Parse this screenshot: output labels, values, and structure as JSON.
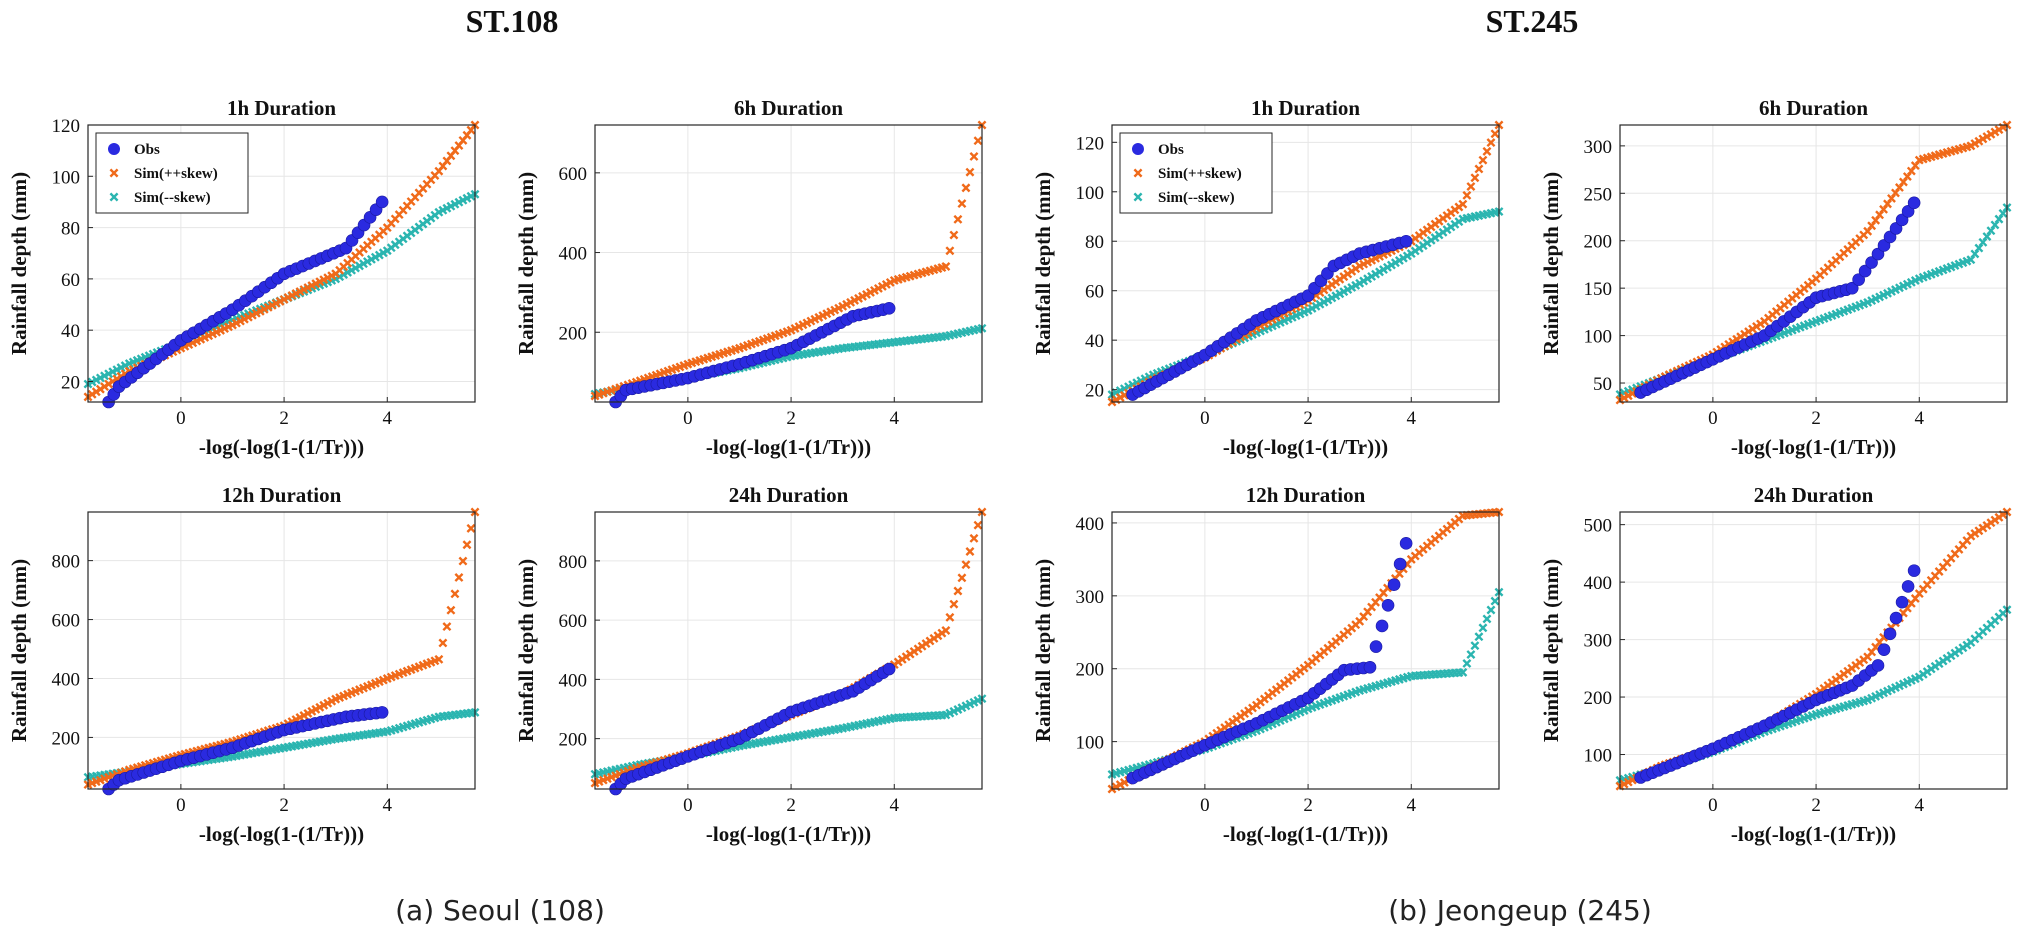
{
  "stations": [
    {
      "title": "ST.108",
      "caption": "(a) Seoul (108)"
    },
    {
      "title": "ST.245",
      "caption": "(b) Jeongeup (245)"
    }
  ],
  "legend": {
    "obs": "Obs",
    "sim_pos": "Sim(++skew)",
    "sim_neg": "Sim(--skew)"
  },
  "colors": {
    "obs": "#2a2ae0",
    "sim_pos": "#f06a1a",
    "sim_neg": "#2bb5b0",
    "axis": "#262626",
    "grid": "#e6e6e6"
  },
  "chart_data": [
    {
      "type": "scatter",
      "station": "ST.108",
      "title": "1h  Duration",
      "xlabel": "-log(-log(1-(1/Tr)))",
      "ylabel": "Rainfall depth (mm)",
      "xlim": [
        -1.8,
        5.7
      ],
      "ylim": [
        12,
        120
      ],
      "xticks": [
        0,
        2,
        4
      ],
      "yticks": [
        20,
        40,
        60,
        80,
        100,
        120
      ],
      "show_legend": true,
      "obs": {
        "x": [
          -1.4,
          -1.2,
          0,
          1,
          2,
          3.2,
          3.9
        ],
        "y": [
          12,
          18,
          36,
          48,
          62,
          72,
          90
        ]
      },
      "sim_pos": {
        "x": [
          -1.8,
          -1,
          0,
          1,
          2,
          3,
          4,
          5,
          5.7
        ],
        "y": [
          14,
          24,
          33,
          42,
          52,
          62,
          80,
          102,
          120
        ]
      },
      "sim_neg": {
        "x": [
          -1.8,
          -1,
          0,
          1,
          2,
          3,
          4,
          5,
          5.7
        ],
        "y": [
          19,
          27,
          35,
          44,
          52,
          60,
          71,
          86,
          93
        ]
      }
    },
    {
      "type": "scatter",
      "station": "ST.108",
      "title": "6h  Duration",
      "xlabel": "-log(-log(1-(1/Tr)))",
      "ylabel": "Rainfall depth (mm)",
      "xlim": [
        -1.8,
        5.7
      ],
      "ylim": [
        25,
        720
      ],
      "xticks": [
        0,
        2,
        4
      ],
      "yticks": [
        200,
        400,
        600
      ],
      "show_legend": false,
      "obs": {
        "x": [
          -1.4,
          -1.2,
          0,
          1,
          2,
          3.2,
          3.9
        ],
        "y": [
          25,
          55,
          85,
          120,
          160,
          240,
          260
        ]
      },
      "sim_pos": {
        "x": [
          -1.8,
          -1,
          0,
          1,
          2,
          3,
          4,
          5,
          5.7
        ],
        "y": [
          40,
          75,
          120,
          160,
          205,
          265,
          330,
          365,
          720
        ]
      },
      "sim_neg": {
        "x": [
          -1.8,
          -1,
          0,
          1,
          2,
          3,
          4,
          5,
          5.7
        ],
        "y": [
          45,
          65,
          85,
          110,
          140,
          160,
          175,
          190,
          210
        ]
      }
    },
    {
      "type": "scatter",
      "station": "ST.245",
      "title": "1h  Duration",
      "xlabel": "-log(-log(1-(1/Tr)))",
      "ylabel": "Rainfall depth (mm)",
      "xlim": [
        -1.8,
        5.7
      ],
      "ylim": [
        15,
        127
      ],
      "xticks": [
        0,
        2,
        4
      ],
      "yticks": [
        20,
        40,
        60,
        80,
        100,
        120
      ],
      "show_legend": true,
      "obs": {
        "x": [
          -1.4,
          0,
          1,
          2,
          2.5,
          3,
          3.9
        ],
        "y": [
          18,
          34,
          48,
          58,
          70,
          75,
          80
        ]
      },
      "sim_pos": {
        "x": [
          -1.8,
          -1,
          0,
          1,
          2,
          3,
          4,
          5,
          5.7
        ],
        "y": [
          15,
          24,
          33,
          45,
          56,
          70,
          80,
          95,
          127
        ]
      },
      "sim_neg": {
        "x": [
          -1.8,
          -1,
          0,
          1,
          2,
          3,
          4,
          5,
          5.7
        ],
        "y": [
          18,
          26,
          34,
          43,
          52,
          63,
          75,
          89,
          92
        ]
      }
    },
    {
      "type": "scatter",
      "station": "ST.245",
      "title": "6h  Duration",
      "xlabel": "-log(-log(1-(1/Tr)))",
      "ylabel": "Rainfall depth (mm)",
      "xlim": [
        -1.8,
        5.7
      ],
      "ylim": [
        30,
        322
      ],
      "xticks": [
        0,
        2,
        4
      ],
      "yticks": [
        50,
        100,
        150,
        200,
        250,
        300
      ],
      "show_legend": false,
      "obs": {
        "x": [
          -1.4,
          0,
          1,
          1.5,
          2,
          2.7,
          3.2,
          3.9
        ],
        "y": [
          40,
          75,
          100,
          120,
          140,
          150,
          186,
          240
        ]
      },
      "sim_pos": {
        "x": [
          -1.8,
          -1,
          0,
          1,
          2,
          3,
          4,
          5,
          5.7
        ],
        "y": [
          32,
          55,
          80,
          115,
          160,
          210,
          285,
          300,
          322
        ]
      },
      "sim_neg": {
        "x": [
          -1.8,
          -1,
          0,
          1,
          2,
          3,
          4,
          5,
          5.7
        ],
        "y": [
          38,
          55,
          75,
          95,
          115,
          135,
          160,
          180,
          235
        ]
      }
    },
    {
      "type": "scatter",
      "station": "ST.108",
      "title": "12h Duration",
      "xlabel": "-log(-log(1-(1/Tr)))",
      "ylabel": "Rainfall depth (mm)",
      "xlim": [
        -1.8,
        5.7
      ],
      "ylim": [
        25,
        965
      ],
      "xticks": [
        0,
        2,
        4
      ],
      "yticks": [
        200,
        400,
        600,
        800
      ],
      "show_legend": false,
      "obs": {
        "x": [
          -1.4,
          -1.2,
          0,
          1,
          2,
          3.2,
          3.9
        ],
        "y": [
          25,
          55,
          120,
          165,
          225,
          270,
          285
        ]
      },
      "sim_pos": {
        "x": [
          -1.8,
          -1,
          0,
          1,
          2,
          3,
          4,
          5,
          5.7
        ],
        "y": [
          40,
          90,
          140,
          185,
          240,
          330,
          400,
          465,
          965
        ]
      },
      "sim_neg": {
        "x": [
          -1.8,
          -1,
          0,
          1,
          2,
          3,
          4,
          5,
          5.7
        ],
        "y": [
          65,
          85,
          110,
          135,
          165,
          195,
          220,
          270,
          285
        ]
      }
    },
    {
      "type": "scatter",
      "station": "ST.108",
      "title": "24h Duration",
      "xlabel": "-log(-log(1-(1/Tr)))",
      "ylabel": "Rainfall depth (mm)",
      "xlim": [
        -1.8,
        5.7
      ],
      "ylim": [
        30,
        965
      ],
      "xticks": [
        0,
        2,
        4
      ],
      "yticks": [
        200,
        400,
        600,
        800
      ],
      "show_legend": false,
      "obs": {
        "x": [
          -1.4,
          -1.2,
          0,
          1,
          2,
          3.2,
          3.9
        ],
        "y": [
          30,
          65,
          140,
          200,
          290,
          360,
          435
        ]
      },
      "sim_pos": {
        "x": [
          -1.8,
          -1,
          0,
          1,
          2,
          3,
          4,
          5,
          5.7
        ],
        "y": [
          50,
          100,
          150,
          210,
          280,
          350,
          450,
          565,
          965
        ]
      },
      "sim_neg": {
        "x": [
          -1.8,
          -1,
          0,
          1,
          2,
          3,
          4,
          5,
          5.7
        ],
        "y": [
          80,
          110,
          140,
          175,
          205,
          235,
          270,
          280,
          335
        ]
      }
    },
    {
      "type": "scatter",
      "station": "ST.245",
      "title": "12h Duration",
      "xlabel": "-log(-log(1-(1/Tr)))",
      "ylabel": "Rainfall depth (mm)",
      "xlim": [
        -1.8,
        5.7
      ],
      "ylim": [
        35,
        415
      ],
      "xticks": [
        0,
        2,
        4
      ],
      "yticks": [
        100,
        200,
        300,
        400
      ],
      "show_legend": false,
      "obs": {
        "x": [
          -1.4,
          0,
          1,
          2,
          2.7,
          3.2,
          3.9
        ],
        "y": [
          50,
          95,
          125,
          160,
          198,
          202,
          372
        ]
      },
      "sim_pos": {
        "x": [
          -1.8,
          -1,
          0,
          1,
          2,
          3,
          4,
          5,
          5.7
        ],
        "y": [
          35,
          65,
          100,
          150,
          205,
          265,
          350,
          410,
          415
        ]
      },
      "sim_neg": {
        "x": [
          -1.8,
          -1,
          0,
          1,
          2,
          3,
          4,
          5,
          5.7
        ],
        "y": [
          55,
          70,
          90,
          115,
          145,
          170,
          190,
          195,
          305
        ]
      }
    },
    {
      "type": "scatter",
      "station": "ST.245",
      "title": "24h Duration",
      "xlabel": "-log(-log(1-(1/Tr)))",
      "ylabel": "Rainfall depth (mm)",
      "xlim": [
        -1.8,
        5.7
      ],
      "ylim": [
        40,
        522
      ],
      "xticks": [
        0,
        2,
        4
      ],
      "yticks": [
        100,
        200,
        300,
        400,
        500
      ],
      "show_legend": false,
      "obs": {
        "x": [
          -1.4,
          0,
          1,
          2,
          2.7,
          3.2,
          3.9
        ],
        "y": [
          60,
          110,
          150,
          195,
          220,
          255,
          420
        ]
      },
      "sim_pos": {
        "x": [
          -1.8,
          -1,
          0,
          1,
          2,
          3,
          4,
          5,
          5.7
        ],
        "y": [
          45,
          80,
          110,
          150,
          205,
          270,
          380,
          480,
          522
        ]
      },
      "sim_neg": {
        "x": [
          -1.8,
          -1,
          0,
          1,
          2,
          3,
          4,
          5,
          5.7
        ],
        "y": [
          55,
          75,
          105,
          140,
          170,
          195,
          235,
          295,
          352
        ]
      }
    }
  ]
}
